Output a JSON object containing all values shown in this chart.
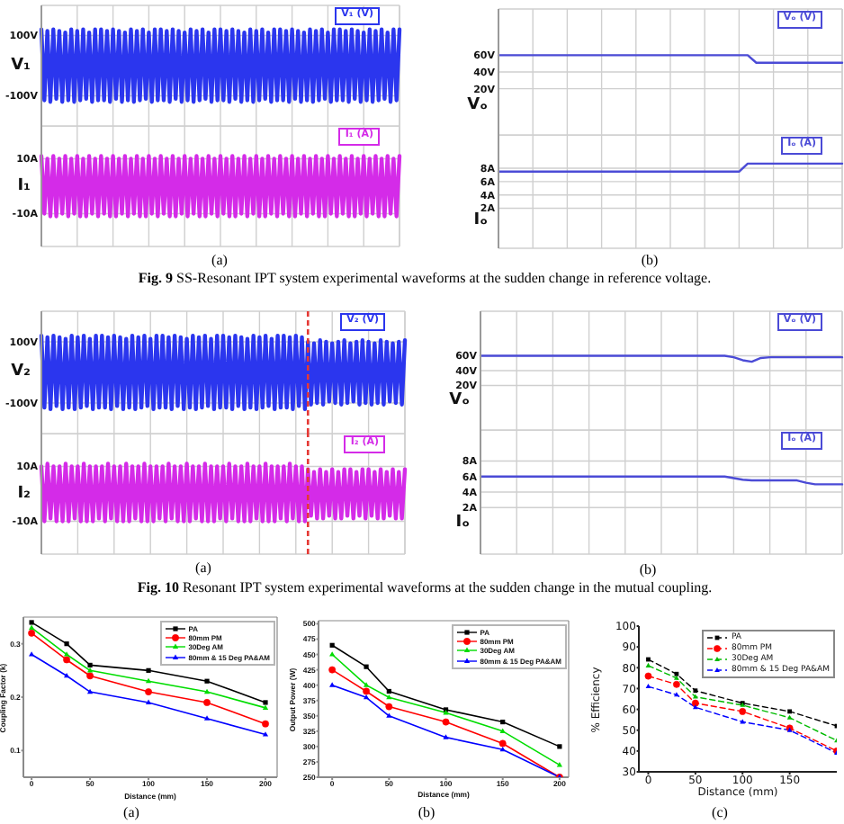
{
  "chart_data": [
    {
      "type": "line",
      "ylabel": "V₁",
      "categories": [
        null,
        null,
        null,
        null,
        null,
        null,
        null,
        null,
        null,
        null,
        null,
        null,
        null,
        null,
        null,
        null,
        null,
        null,
        null,
        null,
        null,
        null,
        null,
        null,
        null,
        null,
        null,
        null,
        null,
        null,
        null,
        null,
        null,
        null,
        null,
        null,
        null,
        null,
        null,
        null,
        null,
        null,
        null,
        null,
        null,
        null,
        null,
        null,
        null,
        null,
        null,
        null,
        null,
        null,
        null,
        null,
        null,
        null,
        null,
        null,
        null,
        null,
        null,
        null,
        null,
        null,
        null,
        null,
        null,
        null,
        null,
        null,
        null,
        null,
        null,
        null,
        null,
        null,
        null,
        null,
        null,
        null,
        null,
        null,
        null,
        null,
        null,
        null,
        null,
        null,
        null,
        null,
        null,
        null,
        null,
        null,
        null,
        null,
        null,
        null,
        null,
        null,
        null,
        null,
        null,
        null,
        null,
        null,
        null,
        null,
        null,
        null,
        null,
        null,
        null,
        null,
        null,
        null,
        null,
        null,
        null
      ],
      "series": [
        {
          "name": "V₁ (V)",
          "color": "#2b36ee",
          "values": [
            120,
            -115,
            115,
            -120,
            120,
            -110,
            115,
            -120,
            110,
            -115,
            120,
            -120,
            115,
            -115,
            120,
            -110,
            110,
            -120,
            120,
            -115,
            120,
            -115,
            115,
            -120,
            120,
            -110,
            115,
            -120,
            110,
            -115,
            120,
            -120,
            115,
            -115,
            120,
            -110,
            110,
            -120,
            120,
            -115,
            120,
            -115,
            115,
            -120,
            120,
            -110,
            115,
            -120,
            110,
            -115,
            120,
            -120,
            115,
            -115,
            120,
            -110,
            110,
            -120,
            120,
            -115,
            120,
            -115,
            115,
            -120,
            120,
            -110,
            115,
            -120,
            110,
            -115,
            120,
            -120,
            115,
            -115,
            120,
            -110,
            110,
            -120,
            120,
            -115,
            120,
            -115,
            115,
            -120,
            120,
            -110,
            115,
            -120,
            110,
            -115,
            120,
            -120,
            115,
            -115,
            120,
            -110,
            110,
            -120,
            120,
            -115,
            120,
            -115,
            115,
            -120,
            120,
            -110,
            115,
            -120,
            110,
            -115,
            120,
            -120,
            115,
            -115,
            120,
            -110,
            110,
            -120,
            120,
            -115,
            120
          ]
        }
      ],
      "ylim": [
        -200,
        200
      ],
      "yticks": [
        {
          "value": 100,
          "label": "100V"
        },
        {
          "value": -100,
          "label": "-100V"
        }
      ],
      "grid": true,
      "tick_labels": "y"
    },
    {
      "type": "line",
      "ylabel": "I₁",
      "categories": [
        null,
        null,
        null,
        null,
        null,
        null,
        null,
        null,
        null,
        null,
        null,
        null,
        null,
        null,
        null,
        null,
        null,
        null,
        null,
        null,
        null,
        null,
        null,
        null,
        null,
        null,
        null,
        null,
        null,
        null,
        null,
        null,
        null,
        null,
        null,
        null,
        null,
        null,
        null,
        null,
        null,
        null,
        null,
        null,
        null,
        null,
        null,
        null,
        null,
        null,
        null,
        null,
        null,
        null,
        null,
        null,
        null,
        null,
        null,
        null,
        null,
        null,
        null,
        null,
        null,
        null,
        null,
        null,
        null,
        null,
        null,
        null,
        null,
        null,
        null,
        null,
        null,
        null,
        null,
        null,
        null,
        null,
        null,
        null,
        null,
        null,
        null,
        null,
        null,
        null,
        null,
        null,
        null,
        null,
        null,
        null,
        null,
        null,
        null,
        null,
        null,
        null,
        null,
        null,
        null,
        null,
        null,
        null,
        null,
        null,
        null,
        null,
        null,
        null,
        null,
        null,
        null,
        null,
        null,
        null,
        null
      ],
      "series": [
        {
          "name": "I₁ (A)",
          "color": "#d42be8",
          "values": [
            11,
            -10,
            10,
            -11,
            11,
            -11,
            10,
            -10,
            11,
            -11,
            10,
            -10,
            11,
            -11,
            10,
            -11,
            11,
            -10,
            10,
            -11,
            11,
            -10,
            10,
            -11,
            11,
            -11,
            10,
            -10,
            11,
            -11,
            10,
            -10,
            11,
            -11,
            10,
            -11,
            11,
            -10,
            10,
            -11,
            11,
            -10,
            10,
            -11,
            11,
            -11,
            10,
            -10,
            11,
            -11,
            10,
            -10,
            11,
            -11,
            10,
            -11,
            11,
            -10,
            10,
            -11,
            11,
            -10,
            10,
            -11,
            11,
            -11,
            10,
            -10,
            11,
            -11,
            10,
            -10,
            11,
            -11,
            10,
            -11,
            11,
            -10,
            10,
            -11,
            11,
            -10,
            10,
            -11,
            11,
            -11,
            10,
            -10,
            11,
            -11,
            10,
            -10,
            11,
            -11,
            10,
            -11,
            11,
            -10,
            10,
            -11,
            11,
            -10,
            10,
            -11,
            11,
            -11,
            10,
            -10,
            11,
            -11,
            10,
            -10,
            11,
            -11,
            10,
            -11,
            11,
            -10,
            10,
            -11,
            11
          ]
        }
      ],
      "ylim": [
        -22,
        22
      ],
      "yticks": [
        {
          "value": 10,
          "label": "10A"
        },
        {
          "value": -10,
          "label": "-10A"
        }
      ],
      "grid": true,
      "tick_labels": "y",
      "annotations": [
        "(a)"
      ]
    },
    {
      "type": "line",
      "ylabel": "Vₒ",
      "categories": [
        null,
        null,
        null,
        null,
        null,
        null,
        null,
        null,
        null,
        null,
        null,
        null,
        null,
        null,
        null,
        null,
        null,
        null,
        null,
        null,
        null,
        null,
        null,
        null,
        null,
        null,
        null,
        null,
        null,
        null,
        null,
        null,
        null,
        null,
        null,
        null,
        null,
        null,
        null,
        null,
        null
      ],
      "series": [
        {
          "name": "Vₒ (V)",
          "color": "#4b4bd6",
          "values": [
            60,
            60,
            60,
            60,
            60,
            60,
            60,
            60,
            60,
            60,
            60,
            60,
            60,
            60,
            60,
            60,
            60,
            60,
            60,
            60,
            60,
            60,
            60,
            60,
            60,
            60,
            60,
            60,
            60,
            60,
            51,
            51,
            51,
            51,
            51,
            51,
            51,
            51,
            51,
            51,
            51
          ]
        }
      ],
      "ylim": [
        -35,
        115
      ],
      "yticks": [
        {
          "value": 60,
          "label": "60V"
        },
        {
          "value": 40,
          "label": "40V"
        },
        {
          "value": 20,
          "label": "20V"
        }
      ],
      "grid": true,
      "tick_labels": "y"
    },
    {
      "type": "line",
      "ylabel": "Iₒ",
      "categories": [
        null,
        null,
        null,
        null,
        null,
        null,
        null,
        null,
        null,
        null,
        null,
        null,
        null,
        null,
        null,
        null,
        null,
        null,
        null,
        null,
        null,
        null,
        null,
        null,
        null,
        null,
        null,
        null,
        null,
        null,
        null,
        null,
        null,
        null,
        null,
        null,
        null,
        null,
        null,
        null,
        null
      ],
      "series": [
        {
          "name": "Iₒ (A)",
          "color": "#4b4bd6",
          "values": [
            7.5,
            7.5,
            7.5,
            7.5,
            7.5,
            7.5,
            7.5,
            7.5,
            7.5,
            7.5,
            7.5,
            7.5,
            7.5,
            7.5,
            7.5,
            7.5,
            7.5,
            7.5,
            7.5,
            7.5,
            7.5,
            7.5,
            7.5,
            7.5,
            7.5,
            7.5,
            7.5,
            7.5,
            7.5,
            8.7,
            8.7,
            8.7,
            8.7,
            8.7,
            8.7,
            8.7,
            8.7,
            8.7,
            8.7,
            8.7,
            8.7
          ]
        }
      ],
      "ylim": [
        -4,
        13
      ],
      "yticks": [
        {
          "value": 8,
          "label": "8A"
        },
        {
          "value": 6,
          "label": "6A"
        },
        {
          "value": 4,
          "label": "4A"
        },
        {
          "value": 2,
          "label": "2A"
        }
      ],
      "grid": true,
      "tick_labels": "y",
      "annotations": [
        "(b)",
        "Fig. 9 SS-Resonant IPT system experimental waveforms at the sudden change in reference voltage."
      ]
    },
    {
      "type": "line",
      "ylabel": "V₂",
      "categories": [
        null,
        null,
        null,
        null,
        null,
        null,
        null,
        null,
        null,
        null,
        null,
        null,
        null,
        null,
        null,
        null,
        null,
        null,
        null,
        null,
        null,
        null,
        null,
        null,
        null,
        null,
        null,
        null,
        null,
        null,
        null,
        null,
        null,
        null,
        null,
        null,
        null,
        null,
        null,
        null,
        null,
        null,
        null,
        null,
        null,
        null,
        null,
        null,
        null,
        null,
        null,
        null,
        null,
        null,
        null,
        null,
        null,
        null,
        null,
        null,
        null,
        null,
        null,
        null,
        null,
        null,
        null,
        null,
        null,
        null,
        null,
        null,
        null,
        null,
        null,
        null,
        null,
        null,
        null,
        null,
        null,
        null,
        null,
        null,
        null,
        null,
        null,
        null,
        null,
        null,
        null,
        null,
        null,
        null,
        null,
        null,
        null,
        null,
        null,
        null,
        null,
        null,
        null,
        null,
        null,
        null,
        null,
        null,
        null,
        null,
        null,
        null,
        null,
        null,
        null,
        null,
        null,
        null,
        null,
        null,
        null
      ],
      "series": [
        {
          "name": "V₂ (V)",
          "color": "#2b36ee",
          "values": [
            120,
            -115,
            115,
            -120,
            120,
            -110,
            115,
            -120,
            110,
            -115,
            120,
            -120,
            115,
            -115,
            120,
            -110,
            110,
            -120,
            120,
            -115,
            120,
            -115,
            115,
            -120,
            120,
            -110,
            115,
            -120,
            110,
            -115,
            120,
            -120,
            115,
            -115,
            120,
            -110,
            110,
            -120,
            120,
            -115,
            120,
            -115,
            115,
            -120,
            120,
            -110,
            115,
            -120,
            110,
            -115,
            120,
            -120,
            115,
            -115,
            120,
            -110,
            110,
            -120,
            120,
            -115,
            120,
            -115,
            115,
            -120,
            120,
            -110,
            115,
            -120,
            110,
            -115,
            120,
            -120,
            115,
            -115,
            120,
            -110,
            110,
            -120,
            120,
            -115,
            120,
            -115,
            115,
            -120,
            120,
            -110,
            115,
            -120,
            100,
            -105,
            95,
            -100,
            105,
            -105,
            100,
            -95,
            95,
            -100,
            100,
            -105,
            105,
            -100,
            95,
            -95,
            100,
            -105,
            105,
            -100,
            100,
            -105,
            95,
            -100,
            105,
            -105,
            100,
            -95,
            95,
            -100,
            100,
            -105,
            105
          ]
        }
      ],
      "ylim": [
        -200,
        200
      ],
      "yticks": [
        {
          "value": 100,
          "label": "100V"
        },
        {
          "value": -100,
          "label": "-100V"
        }
      ],
      "grid": true,
      "tick_labels": "y"
    },
    {
      "type": "line",
      "ylabel": "I₂",
      "categories": [
        null,
        null,
        null,
        null,
        null,
        null,
        null,
        null,
        null,
        null,
        null,
        null,
        null,
        null,
        null,
        null,
        null,
        null,
        null,
        null,
        null,
        null,
        null,
        null,
        null,
        null,
        null,
        null,
        null,
        null,
        null,
        null,
        null,
        null,
        null,
        null,
        null,
        null,
        null,
        null,
        null,
        null,
        null,
        null,
        null,
        null,
        null,
        null,
        null,
        null,
        null,
        null,
        null,
        null,
        null,
        null,
        null,
        null,
        null,
        null,
        null,
        null,
        null,
        null,
        null,
        null,
        null,
        null,
        null,
        null,
        null,
        null,
        null,
        null,
        null,
        null,
        null,
        null,
        null,
        null,
        null,
        null,
        null,
        null,
        null,
        null,
        null,
        null,
        null,
        null,
        null,
        null,
        null,
        null,
        null,
        null,
        null,
        null,
        null,
        null,
        null,
        null,
        null,
        null,
        null,
        null,
        null,
        null,
        null,
        null,
        null,
        null,
        null,
        null,
        null,
        null,
        null,
        null,
        null,
        null,
        null
      ],
      "series": [
        {
          "name": "I₂ (A)",
          "color": "#d42be8",
          "values": [
            10,
            -10,
            11,
            -9,
            10,
            -10,
            10,
            -10,
            11,
            -10,
            10,
            -9,
            10,
            -10,
            11,
            -10,
            10,
            -10,
            10,
            -9,
            10,
            -10,
            11,
            -9,
            10,
            -10,
            10,
            -10,
            11,
            -10,
            10,
            -9,
            10,
            -10,
            11,
            -10,
            10,
            -10,
            10,
            -9,
            10,
            -10,
            11,
            -9,
            10,
            -10,
            10,
            -10,
            11,
            -10,
            10,
            -9,
            10,
            -10,
            11,
            -10,
            10,
            -10,
            10,
            -9,
            10,
            -10,
            11,
            -9,
            10,
            -10,
            10,
            -10,
            11,
            -10,
            10,
            -9,
            10,
            -10,
            11,
            -10,
            10,
            -10,
            10,
            -9,
            10,
            -10,
            11,
            -9,
            10,
            -10,
            10,
            -10,
            9,
            -8,
            8,
            -9,
            9,
            -9,
            8,
            -8,
            9,
            -9,
            8,
            -9,
            9,
            -8,
            9,
            -9,
            8,
            -8,
            9,
            -9,
            9,
            -8,
            8,
            -9,
            9,
            -9,
            8,
            -8,
            9,
            -9,
            8,
            -9,
            9
          ]
        }
      ],
      "ylim": [
        -22,
        22
      ],
      "yticks": [
        {
          "value": 10,
          "label": "10A"
        },
        {
          "value": -10,
          "label": "-10A"
        }
      ],
      "grid": true,
      "tick_labels": "y",
      "annotations": [
        "(a)"
      ]
    },
    {
      "type": "line",
      "ylabel": "Vₒ",
      "categories": [
        null,
        null,
        null,
        null,
        null,
        null,
        null,
        null,
        null,
        null,
        null,
        null,
        null,
        null,
        null,
        null,
        null,
        null,
        null,
        null,
        null,
        null,
        null,
        null,
        null,
        null,
        null,
        null,
        null,
        null,
        null,
        null,
        null,
        null,
        null,
        null,
        null,
        null,
        null,
        null,
        null
      ],
      "series": [
        {
          "name": "Vₒ (V)",
          "color": "#4b4bd6",
          "values": [
            60,
            60,
            60,
            60,
            60,
            60,
            60,
            60,
            60,
            60,
            60,
            60,
            60,
            60,
            60,
            60,
            60,
            60,
            60,
            60,
            60,
            60,
            60,
            60,
            60,
            60,
            60,
            60,
            58,
            54,
            52,
            57,
            58,
            58,
            58,
            58,
            58,
            58,
            58,
            58,
            58
          ]
        }
      ],
      "ylim": [
        -40,
        120
      ],
      "yticks": [
        {
          "value": 60,
          "label": "60V"
        },
        {
          "value": 40,
          "label": "40V"
        },
        {
          "value": 20,
          "label": "20V"
        }
      ],
      "grid": true,
      "tick_labels": "y"
    },
    {
      "type": "line",
      "ylabel": "Iₒ",
      "categories": [
        null,
        null,
        null,
        null,
        null,
        null,
        null,
        null,
        null,
        null,
        null,
        null,
        null,
        null,
        null,
        null,
        null,
        null,
        null,
        null,
        null,
        null,
        null,
        null,
        null,
        null,
        null,
        null,
        null,
        null,
        null,
        null,
        null,
        null,
        null,
        null,
        null,
        null,
        null,
        null,
        null
      ],
      "series": [
        {
          "name": "Iₒ (A)",
          "color": "#4b4bd6",
          "values": [
            6,
            6,
            6,
            6,
            6,
            6,
            6,
            6,
            6,
            6,
            6,
            6,
            6,
            6,
            6,
            6,
            6,
            6,
            6,
            6,
            6,
            6,
            6,
            6,
            6,
            6,
            6,
            6,
            5.8,
            5.6,
            5.5,
            5.5,
            5.5,
            5.5,
            5.5,
            5.5,
            5.2,
            5,
            5,
            5,
            5
          ]
        }
      ],
      "ylim": [
        -4,
        12
      ],
      "yticks": [
        {
          "value": 8,
          "label": "8A"
        },
        {
          "value": 6,
          "label": "6A"
        },
        {
          "value": 4,
          "label": "4A"
        },
        {
          "value": 2,
          "label": "2A"
        }
      ],
      "grid": true,
      "tick_labels": "y",
      "annotations": [
        "(b)",
        "Fig. 10 Resonant IPT system experimental waveforms at the sudden change in the mutual coupling."
      ]
    },
    {
      "type": "line",
      "xlabel": "Distance (mm)",
      "ylabel": "Coupling Factor (k)",
      "x": [
        0,
        30,
        50,
        100,
        150,
        200
      ],
      "series": [
        {
          "name": "PA",
          "color": "#000000",
          "marker": "square",
          "values": [
            0.34,
            0.3,
            0.26,
            0.25,
            0.23,
            0.19
          ]
        },
        {
          "name": "80mm PM",
          "color": "#ff0000",
          "marker": "circle",
          "values": [
            0.32,
            0.27,
            0.24,
            0.21,
            0.19,
            0.15
          ]
        },
        {
          "name": "30Deg AM",
          "color": "#00dd00",
          "marker": "triangle",
          "values": [
            0.33,
            0.28,
            0.25,
            0.23,
            0.21,
            0.18
          ]
        },
        {
          "name": "80mm & 15 Deg PA&AM",
          "color": "#0000ff",
          "marker": "triangle",
          "values": [
            0.28,
            0.24,
            0.21,
            0.19,
            0.16,
            0.13
          ]
        }
      ],
      "xlim": [
        -7,
        210
      ],
      "xticks": [
        0,
        50,
        100,
        150,
        200
      ],
      "ylim": [
        0.05,
        0.35
      ],
      "yticks": [
        0.1,
        0.2,
        0.3
      ],
      "legend": "top right",
      "annotations": [
        "(a)"
      ]
    },
    {
      "type": "line",
      "xlabel": "Distance (mm)",
      "ylabel": "Output Power (W)",
      "x": [
        0,
        30,
        50,
        100,
        150,
        200
      ],
      "series": [
        {
          "name": "PA",
          "color": "#000000",
          "marker": "square",
          "values": [
            465,
            430,
            390,
            360,
            340,
            300
          ]
        },
        {
          "name": "80mm PM",
          "color": "#ff0000",
          "marker": "circle",
          "values": [
            425,
            390,
            365,
            340,
            305,
            250
          ]
        },
        {
          "name": "30Deg AM",
          "color": "#00dd00",
          "marker": "triangle",
          "values": [
            450,
            400,
            380,
            355,
            325,
            270
          ]
        },
        {
          "name": "80mm & 15 Deg PA&AM",
          "color": "#0000ff",
          "marker": "triangle",
          "values": [
            400,
            380,
            350,
            315,
            295,
            250
          ]
        }
      ],
      "xlim": [
        -12,
        208
      ],
      "xticks": [
        0,
        50,
        100,
        150,
        200
      ],
      "ylim": [
        250,
        505
      ],
      "yticks": [
        250,
        275,
        300,
        325,
        350,
        375,
        400,
        425,
        450,
        475,
        500
      ],
      "legend": "top right",
      "annotations": [
        "(b)"
      ]
    },
    {
      "type": "line",
      "xlabel": "Distance (mm)",
      "ylabel": "% Efficiency",
      "x": [
        0,
        30,
        50,
        100,
        150,
        200
      ],
      "series": [
        {
          "name": "PA",
          "color": "#000000",
          "marker": "square",
          "values": [
            84,
            77,
            69,
            63,
            59,
            52
          ]
        },
        {
          "name": "80mm PM",
          "color": "#ff0000",
          "marker": "circle",
          "values": [
            76,
            72,
            63,
            59,
            51,
            40
          ]
        },
        {
          "name": "30Deg AM",
          "color": "#00bb00",
          "marker": "triangle",
          "values": [
            81,
            75,
            66,
            62,
            56,
            45
          ]
        },
        {
          "name": "80mm & 15 Deg PA&AM",
          "color": "#0000ff",
          "marker": "triangle",
          "values": [
            71,
            67,
            61,
            54,
            50,
            39
          ]
        }
      ],
      "xlim": [
        -10,
        200
      ],
      "xticks": [
        0,
        50,
        100,
        150
      ],
      "ylim": [
        30,
        100
      ],
      "yticks": [
        30,
        40,
        50,
        60,
        70,
        80,
        90,
        100
      ],
      "line_style": "dashed",
      "legend": "top right",
      "annotations": [
        "(c)"
      ]
    }
  ]
}
